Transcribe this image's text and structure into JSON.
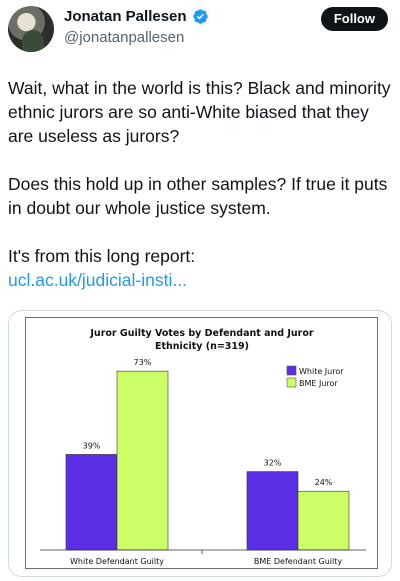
{
  "author": {
    "name": "Jonatan Pallesen",
    "handle": "@jonatanpallesen",
    "verified": true,
    "avatar_icon": "profile-photo"
  },
  "follow_label": "Follow",
  "tweet": {
    "paragraph1": "Wait, what in the world is this? Black and minority ethnic jurors are so anti-White biased that they are useless as jurors?",
    "paragraph2": "Does this hold up in other samples? If true it puts in doubt our whole justice system.",
    "paragraph3_text": "It's from this long report:",
    "paragraph3_link": "ucl.ac.uk/judicial-insti..."
  },
  "colors": {
    "white_juror": "#5b2ee6",
    "bme_juror": "#ccff66",
    "verified": "#1d9bf0",
    "link": "#1d9bf0"
  },
  "chart_data": {
    "type": "bar",
    "title_line1": "Juror Guilty Votes by Defendant and Juror",
    "title_line2": "Ethnicity (n=319)",
    "categories": [
      "White Defendant Guilty",
      "BME Defendant Guilty"
    ],
    "series": [
      {
        "name": "White Juror",
        "values": [
          39,
          32
        ],
        "labels": [
          "39%",
          "32%"
        ],
        "color": "#5b2ee6"
      },
      {
        "name": "BME Juror",
        "values": [
          73,
          24
        ],
        "labels": [
          "73%",
          "24%"
        ],
        "color": "#ccff66"
      }
    ],
    "ylim": [
      0,
      80
    ],
    "grid": false,
    "legend": "top-right"
  }
}
